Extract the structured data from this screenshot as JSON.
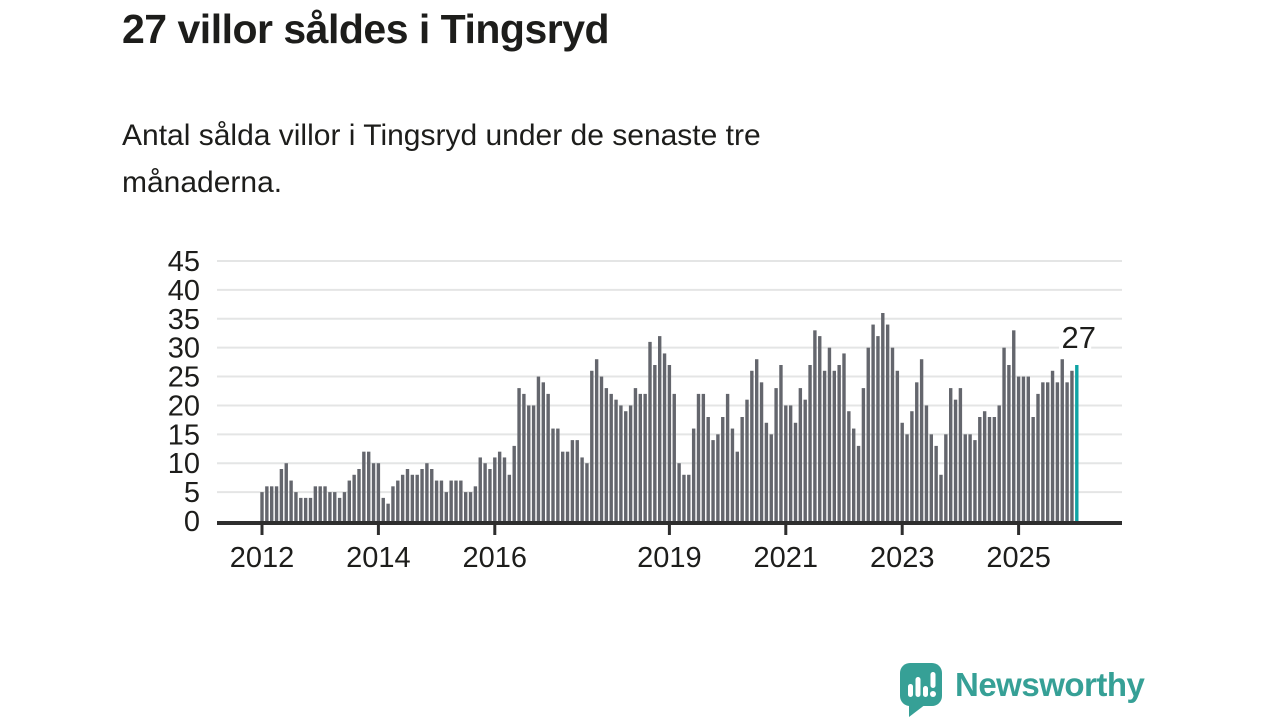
{
  "header": {
    "title": "27 villor såldes i Tingsryd",
    "subtitle": "Antal sålda villor i Tingsryd under de senaste tre\nmånaderna."
  },
  "chart_data": {
    "type": "bar",
    "title": "27 villor såldes i Tingsryd",
    "subtitle": "Antal sålda villor i Tingsryd under de senaste tre månaderna.",
    "xlabel": "",
    "ylabel": "",
    "grid": true,
    "legend": "none",
    "ylim": [
      0,
      46
    ],
    "y_ticks": [
      0,
      5,
      10,
      15,
      20,
      25,
      30,
      35,
      40,
      45
    ],
    "x_ticks": [
      {
        "label": "2012",
        "month_index": 0
      },
      {
        "label": "2014",
        "month_index": 24
      },
      {
        "label": "2016",
        "month_index": 48
      },
      {
        "label": "2019",
        "month_index": 84
      },
      {
        "label": "2021",
        "month_index": 108
      },
      {
        "label": "2023",
        "month_index": 132
      },
      {
        "label": "2025",
        "month_index": 156
      }
    ],
    "series_start": "2012",
    "values": [
      5,
      6,
      6,
      6,
      9,
      10,
      7,
      5,
      4,
      4,
      4,
      6,
      6,
      6,
      5,
      5,
      4,
      5,
      7,
      8,
      9,
      12,
      12,
      10,
      10,
      4,
      3,
      6,
      7,
      8,
      9,
      8,
      8,
      9,
      10,
      9,
      7,
      7,
      5,
      7,
      7,
      7,
      5,
      5,
      6,
      11,
      10,
      9,
      11,
      12,
      11,
      8,
      13,
      23,
      22,
      20,
      20,
      25,
      24,
      22,
      16,
      16,
      12,
      12,
      14,
      14,
      11,
      10,
      26,
      28,
      25,
      23,
      22,
      21,
      20,
      19,
      20,
      23,
      22,
      22,
      31,
      27,
      32,
      29,
      27,
      22,
      10,
      8,
      8,
      16,
      22,
      22,
      18,
      14,
      15,
      18,
      22,
      16,
      12,
      18,
      21,
      26,
      28,
      24,
      17,
      15,
      23,
      27,
      20,
      20,
      17,
      23,
      21,
      27,
      33,
      32,
      26,
      30,
      26,
      27,
      29,
      19,
      16,
      13,
      23,
      30,
      34,
      32,
      36,
      34,
      30,
      26,
      17,
      15,
      19,
      24,
      28,
      20,
      15,
      13,
      8,
      15,
      23,
      21,
      23,
      15,
      15,
      14,
      18,
      19,
      18,
      18,
      20,
      30,
      27,
      33,
      25,
      25,
      25,
      18,
      22,
      24,
      24,
      26,
      24,
      28,
      24,
      26,
      27
    ],
    "highlight_last_bar": true,
    "annotation": {
      "text": "27",
      "target": "last-bar"
    },
    "colors": {
      "bar": "#64666d",
      "highlight": "#0ea3a4",
      "grid": "#e4e5e5",
      "axis": "#2e2e2e",
      "text": "#1d1d1b"
    }
  },
  "footer": {
    "brand": "Newsworthy",
    "brand_color": "#36a096"
  }
}
